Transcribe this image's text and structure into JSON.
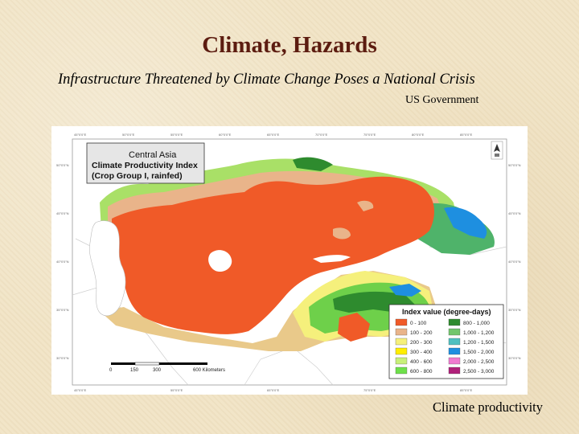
{
  "slide": {
    "title": "Climate, Hazards",
    "subtitle": "Infrastructure Threatened by Climate Change Poses a National Crisis",
    "source": "US Government",
    "caption": "Climate productivity"
  },
  "map": {
    "region": "Central Asia",
    "index_name": "Climate Productivity Index",
    "crop_group": "(Crop Group I, rainfed)",
    "scale_labels": [
      "0",
      "150",
      "300",
      "600 Kilometers"
    ],
    "legend": {
      "title": "Index value (degree-days)",
      "items": [
        {
          "label": "0 - 100",
          "color": "#f05a28"
        },
        {
          "label": "100 - 200",
          "color": "#e9b48a"
        },
        {
          "label": "200 - 300",
          "color": "#f5f07c"
        },
        {
          "label": "300 - 400",
          "color": "#ffee00"
        },
        {
          "label": "400 - 600",
          "color": "#c8f07a"
        },
        {
          "label": "600 - 800",
          "color": "#6ee04a"
        },
        {
          "label": "800 - 1,000",
          "color": "#2e8b2e"
        },
        {
          "label": "1,000 - 1,200",
          "color": "#72c66c"
        },
        {
          "label": "1,200 - 1,500",
          "color": "#4fc0c0"
        },
        {
          "label": "1,500 - 2,000",
          "color": "#1e8fe0"
        },
        {
          "label": "2,000 - 2,500",
          "color": "#f07ad0"
        },
        {
          "label": "2,500 - 3,000",
          "color": "#b0207a"
        }
      ]
    }
  }
}
